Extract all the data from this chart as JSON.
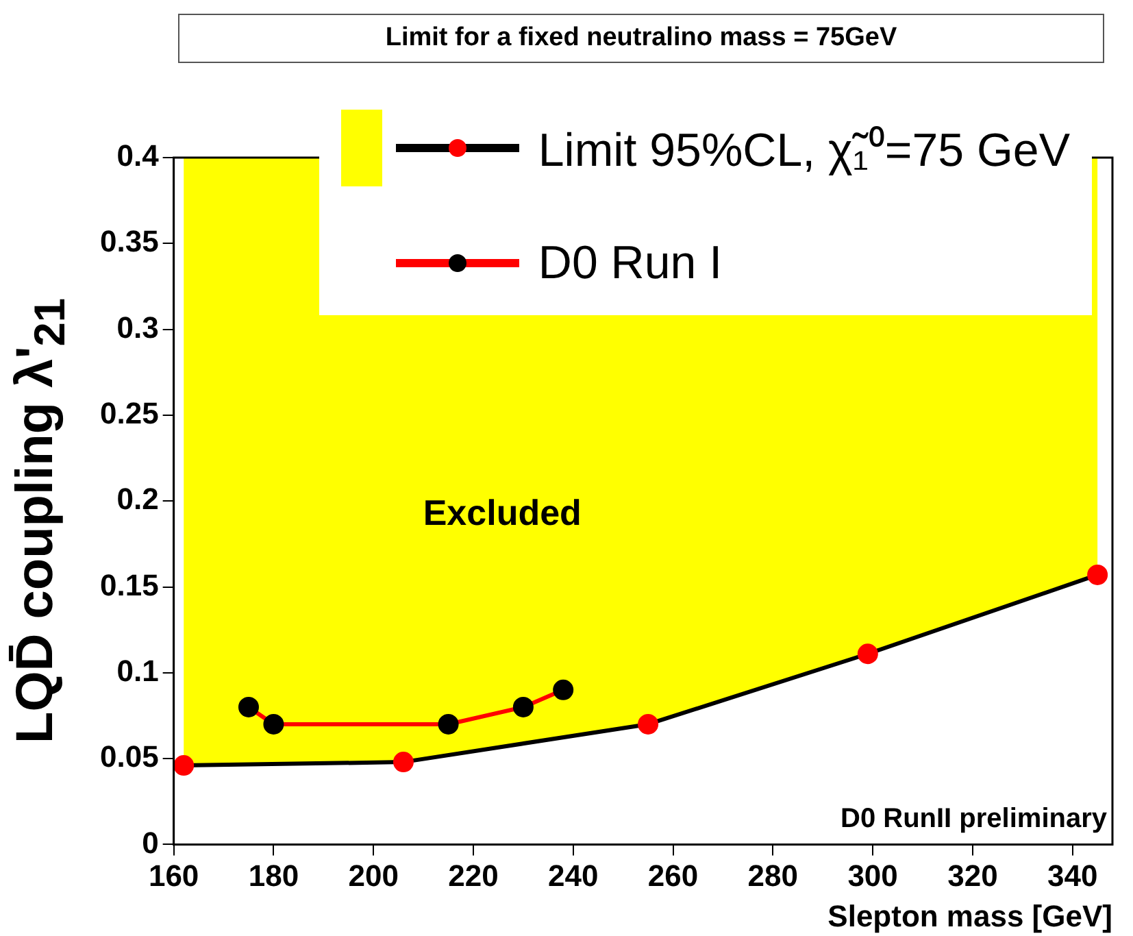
{
  "chart_data": {
    "type": "line",
    "title": "Limit for a fixed neutralino mass = 75GeV",
    "xlabel": "Slepton mass [GeV]",
    "ylabel": "LQD̄ coupling λ'$_{21}$",
    "xlim": [
      160,
      348
    ],
    "xticks": [
      160,
      180,
      200,
      220,
      240,
      260,
      280,
      300,
      320,
      340
    ],
    "ylim": [
      0,
      0.4
    ],
    "yticks": [
      0,
      0.05,
      0.1,
      0.15,
      0.2,
      0.25,
      0.3,
      0.35,
      0.4
    ],
    "grid": false,
    "legend": "top right",
    "marker": "circle",
    "line_style": "solid",
    "series": [
      {
        "type": "line",
        "name": "Limit 95%CL, χ̃₁⁰=75 GeV",
        "color": "#000000",
        "colors": [
          "#ff0000",
          "#ff0000",
          "#ff0000",
          "#ff0000",
          "#ff0000"
        ],
        "x": [
          162,
          206,
          255,
          299,
          345
        ],
        "values": [
          0.046,
          0.048,
          0.07,
          0.111,
          0.157
        ]
      },
      {
        "type": "line",
        "name": "D0 Run I",
        "color": "#ff0000",
        "colors": [
          "#000000",
          "#000000",
          "#000000",
          "#000000",
          "#000000"
        ],
        "x": [
          175,
          180,
          215,
          230,
          238
        ],
        "values": [
          0.08,
          0.07,
          0.07,
          0.08,
          0.09
        ]
      }
    ],
    "annotations": [
      "Excluded",
      "D0 RunII preliminary"
    ]
  }
}
